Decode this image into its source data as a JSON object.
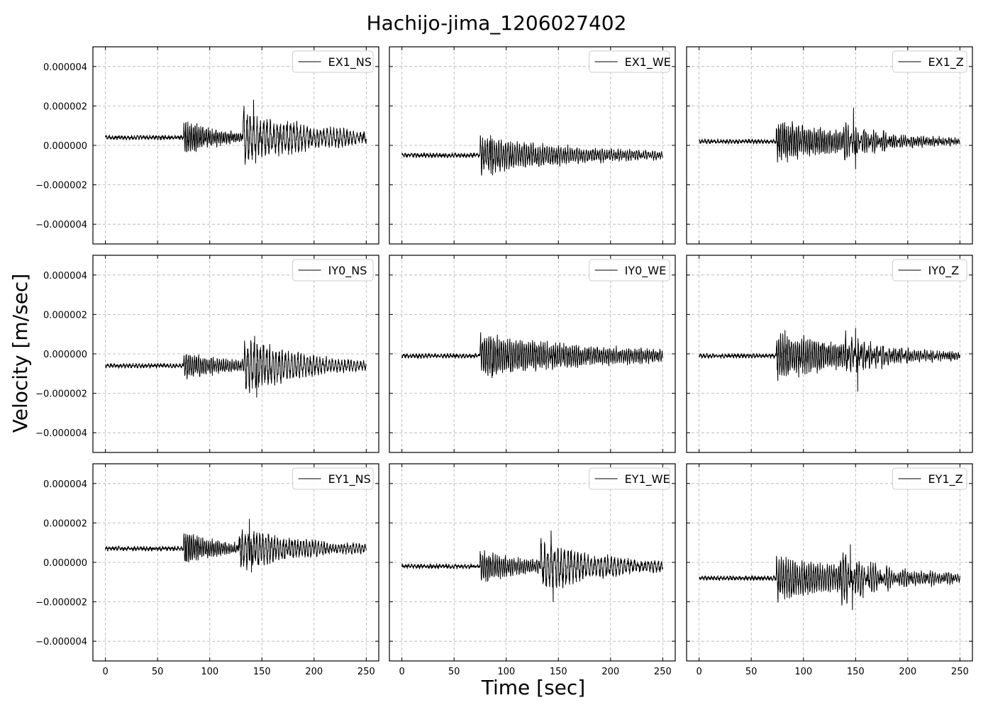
{
  "chart_data": {
    "type": "line",
    "title": "Hachijo-jima_1206027402",
    "xlabel": "Time [sec]",
    "ylabel": "Velocity [m/sec]",
    "xlim": [
      -12,
      262
    ],
    "ylim": [
      -5e-06,
      5e-06
    ],
    "xticks": [
      0,
      50,
      100,
      150,
      200,
      250
    ],
    "xtick_labels": [
      "0",
      "50",
      "100",
      "150",
      "200",
      "250"
    ],
    "yticks": [
      4e-06,
      2e-06,
      0.0,
      -2e-06,
      -4e-06
    ],
    "ytick_labels": [
      "0.000004",
      "0.000002",
      "0.000000",
      "−0.000002",
      "−0.000004"
    ],
    "grid": true,
    "legend_position": "top-right",
    "color": "#000000",
    "duration_sec": 250,
    "layout": {
      "rows": 3,
      "cols": 3,
      "sharex": true,
      "sharey": true
    },
    "panels": [
      {
        "name": "EX1_NS",
        "baseline": 4e-07,
        "noise_amp": 1.2e-07,
        "events": [
          {
            "onset": 75,
            "amp": 4.2e-07,
            "decay": 0.03,
            "period": 1.8
          },
          {
            "onset": 132,
            "amp": 5.5e-07,
            "decay": 0.012,
            "period": 3.2
          }
        ],
        "max": 2.3e-06,
        "min": -9e-07
      },
      {
        "name": "EX1_WE",
        "baseline": -5e-07,
        "noise_amp": 1.2e-07,
        "events": [
          {
            "onset": 75,
            "amp": 4e-07,
            "decay": 0.01,
            "period": 2.2
          }
        ],
        "max": 5e-07,
        "min": -1.5e-06
      },
      {
        "name": "EX1_Z",
        "baseline": 2e-07,
        "noise_amp": 1.2e-07,
        "events": [
          {
            "onset": 74,
            "amp": 4.5e-07,
            "decay": 0.012,
            "period": 1.9
          },
          {
            "onset": 138,
            "amp": 3e-07,
            "decay": 0.03,
            "period": 2.4
          }
        ],
        "max": 1.9e-06,
        "min": -1.2e-06
      },
      {
        "name": "IY0_NS",
        "baseline": -6e-07,
        "noise_amp": 1.2e-07,
        "events": [
          {
            "onset": 75,
            "amp": 3e-07,
            "decay": 0.02,
            "period": 2.0
          },
          {
            "onset": 133,
            "amp": 6e-07,
            "decay": 0.018,
            "period": 3.0
          }
        ],
        "max": 9e-07,
        "min": -2.2e-06
      },
      {
        "name": "IY0_WE",
        "baseline": -1e-07,
        "noise_amp": 1.2e-07,
        "events": [
          {
            "onset": 75,
            "amp": 4.8e-07,
            "decay": 0.008,
            "period": 2.0
          }
        ],
        "max": 8e-07,
        "min": -1.1e-06
      },
      {
        "name": "IY0_Z",
        "baseline": -1e-07,
        "noise_amp": 1.2e-07,
        "events": [
          {
            "onset": 74,
            "amp": 5.5e-07,
            "decay": 0.012,
            "period": 2.0
          },
          {
            "onset": 140,
            "amp": 3e-07,
            "decay": 0.02,
            "period": 3.0
          }
        ],
        "max": 1.3e-06,
        "min": -1.9e-06
      },
      {
        "name": "EY1_NS",
        "baseline": 7e-07,
        "noise_amp": 1.2e-07,
        "events": [
          {
            "onset": 75,
            "amp": 4e-07,
            "decay": 0.03,
            "period": 1.8
          },
          {
            "onset": 128,
            "amp": 4.5e-07,
            "decay": 0.014,
            "period": 2.8
          }
        ],
        "max": 2.2e-06,
        "min": -5e-07
      },
      {
        "name": "EY1_WE",
        "baseline": -2e-07,
        "noise_amp": 1.2e-07,
        "events": [
          {
            "onset": 75,
            "amp": 3.5e-07,
            "decay": 0.02,
            "period": 2.0
          },
          {
            "onset": 133,
            "amp": 5.5e-07,
            "decay": 0.015,
            "period": 3.2
          }
        ],
        "max": 1.6e-06,
        "min": -2e-06
      },
      {
        "name": "EY1_Z",
        "baseline": -8e-07,
        "noise_amp": 1.2e-07,
        "events": [
          {
            "onset": 74,
            "amp": 5e-07,
            "decay": 0.01,
            "period": 2.2
          },
          {
            "onset": 135,
            "amp": 4e-07,
            "decay": 0.025,
            "period": 2.6
          }
        ],
        "max": 9e-07,
        "min": -2.4e-06
      }
    ]
  }
}
